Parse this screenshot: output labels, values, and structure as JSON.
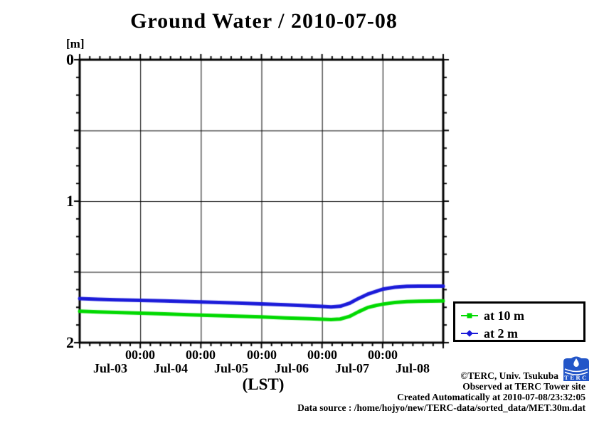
{
  "title": "Ground Water / 2010-07-08",
  "y_axis": {
    "unit_label": "[m]",
    "tick_labels": [
      "0",
      "1",
      "2"
    ]
  },
  "x_axis": {
    "time_labels": [
      "00:00",
      "00:00",
      "00:00",
      "00:00",
      "00:00"
    ],
    "date_labels": [
      "Jul-03",
      "Jul-04",
      "Jul-05",
      "Jul-06",
      "Jul-07",
      "Jul-08"
    ],
    "axis_label": "(LST)"
  },
  "legend": {
    "items": [
      {
        "label": "at 10 m",
        "color": "#00d900",
        "marker": "square"
      },
      {
        "label": "at 2 m",
        "color": "#1b1bd9",
        "marker": "diamond"
      }
    ]
  },
  "footer": {
    "credit": "©TERC, Univ. Tsukuba",
    "site": "Observed at TERC Tower site",
    "created": "Created Automatically at 2010-07-08/23:32:05",
    "data_source": "Data source : /home/hojyo/new/TERC-data/sorted_data/MET.30m.dat",
    "logo_text": "TERC"
  },
  "chart_data": {
    "type": "line",
    "title": "Ground Water / 2010-07-08",
    "xlabel": "(LST)",
    "ylabel": "[m]",
    "x_unit": "days since 2010-07-03 00:00 LST",
    "xlim": [
      0,
      6
    ],
    "ylim": [
      0,
      2
    ],
    "y_axis_direction": "depth, increases downward",
    "grid": true,
    "x_major_tick_days": [
      0,
      1,
      2,
      3,
      4,
      5,
      6
    ],
    "x_minor_tick_hours": 4,
    "y_major_tick_step": 0.5,
    "y_minor_tick_step": 0.125,
    "legend_position": "outside right, lower",
    "x": [
      0,
      0.3,
      0.6,
      1.0,
      1.4,
      1.8,
      2.2,
      2.6,
      3.0,
      3.4,
      3.8,
      4.0,
      4.15,
      4.3,
      4.45,
      4.6,
      4.75,
      4.9,
      5.0,
      5.2,
      5.4,
      5.6,
      5.8,
      6.0
    ],
    "series": [
      {
        "name": "at 10 m",
        "color": "#00d900",
        "values": [
          1.778,
          1.783,
          1.787,
          1.792,
          1.797,
          1.803,
          1.808,
          1.813,
          1.818,
          1.825,
          1.831,
          1.834,
          1.837,
          1.833,
          1.815,
          1.782,
          1.752,
          1.736,
          1.728,
          1.716,
          1.71,
          1.707,
          1.706,
          1.705
        ]
      },
      {
        "name": "at 2 m",
        "color": "#1b1bd9",
        "values": [
          1.688,
          1.693,
          1.697,
          1.701,
          1.705,
          1.71,
          1.715,
          1.72,
          1.726,
          1.733,
          1.74,
          1.744,
          1.748,
          1.743,
          1.722,
          1.688,
          1.658,
          1.636,
          1.622,
          1.608,
          1.602,
          1.6,
          1.6,
          1.6
        ]
      }
    ]
  }
}
